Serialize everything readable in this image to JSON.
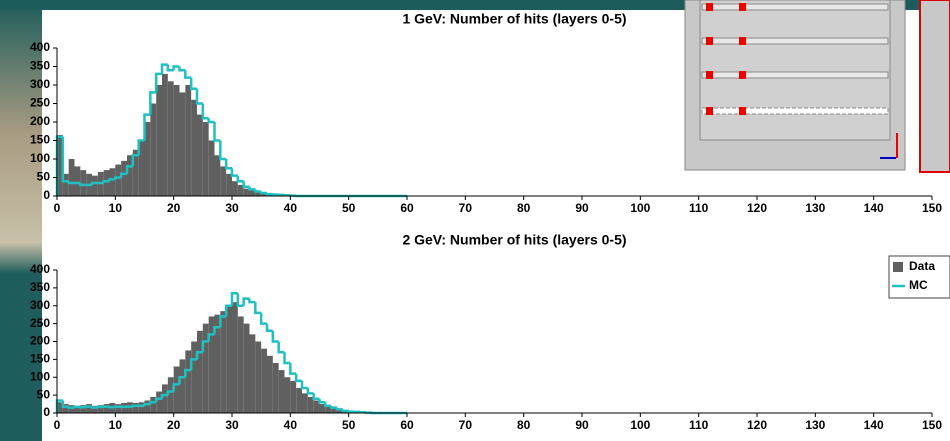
{
  "chart_data": [
    {
      "type": "histogram",
      "title": "1 GeV: Number of hits (layers 0-5)",
      "bins": [
        0,
        1,
        2,
        3,
        4,
        5,
        6,
        7,
        8,
        9,
        10,
        11,
        12,
        13,
        14,
        15,
        16,
        17,
        18,
        19,
        20,
        21,
        22,
        23,
        24,
        25,
        26,
        27,
        28,
        29,
        30,
        31,
        32,
        33,
        34,
        35,
        36,
        37,
        38,
        39,
        40,
        41,
        42,
        43,
        44,
        45,
        46,
        47,
        48,
        49,
        50,
        51,
        52,
        53,
        54,
        55,
        56,
        57,
        58,
        59,
        60
      ],
      "series": [
        {
          "color": "#606060",
          "values": [
            165,
            60,
            100,
            80,
            70,
            60,
            55,
            65,
            70,
            75,
            85,
            95,
            110,
            125,
            150,
            200,
            250,
            300,
            330,
            310,
            300,
            280,
            300,
            260,
            220,
            200,
            150,
            110,
            80,
            60,
            40,
            30,
            20,
            15,
            10,
            8,
            5,
            4,
            3,
            2,
            2,
            1,
            1,
            1,
            0,
            0,
            0,
            0,
            0,
            0,
            0,
            0,
            0,
            0,
            0,
            0,
            0,
            0,
            0,
            0
          ]
        },
        {
          "color": "#20c0c0",
          "values": [
            160,
            40,
            35,
            35,
            30,
            30,
            35,
            35,
            40,
            45,
            50,
            60,
            80,
            110,
            150,
            220,
            280,
            330,
            355,
            340,
            350,
            340,
            320,
            290,
            250,
            210,
            200,
            150,
            100,
            75,
            55,
            40,
            25,
            18,
            12,
            8,
            5,
            4,
            3,
            2,
            1,
            0,
            0,
            0,
            0,
            0,
            0,
            0,
            0,
            0,
            0,
            0,
            0,
            0,
            0,
            0,
            0,
            0,
            0,
            0
          ]
        }
      ],
      "xlim": [
        0,
        150
      ],
      "ylim": [
        0,
        400
      ],
      "xticks": [
        0,
        10,
        20,
        30,
        40,
        50,
        60,
        70,
        80,
        90,
        100,
        110,
        120,
        130,
        140,
        150
      ],
      "yticks": [
        0,
        50,
        100,
        150,
        200,
        250,
        300,
        350,
        400
      ]
    },
    {
      "type": "histogram",
      "title": "2 GeV: Number of hits (layers 0-5)",
      "bins": [
        0,
        1,
        2,
        3,
        4,
        5,
        6,
        7,
        8,
        9,
        10,
        11,
        12,
        13,
        14,
        15,
        16,
        17,
        18,
        19,
        20,
        21,
        22,
        23,
        24,
        25,
        26,
        27,
        28,
        29,
        30,
        31,
        32,
        33,
        34,
        35,
        36,
        37,
        38,
        39,
        40,
        41,
        42,
        43,
        44,
        45,
        46,
        47,
        48,
        49,
        50,
        51,
        52,
        53,
        54,
        55,
        56,
        57,
        58,
        59,
        60
      ],
      "series": [
        {
          "name": "Data",
          "color": "#606060",
          "values": [
            30,
            25,
            22,
            20,
            22,
            25,
            20,
            22,
            25,
            28,
            25,
            28,
            30,
            28,
            30,
            35,
            45,
            60,
            80,
            100,
            130,
            150,
            175,
            200,
            230,
            250,
            270,
            275,
            285,
            300,
            310,
            270,
            250,
            220,
            200,
            180,
            160,
            140,
            120,
            100,
            90,
            70,
            55,
            45,
            35,
            25,
            20,
            15,
            10,
            8,
            5,
            4,
            3,
            2,
            2,
            1,
            0,
            0,
            0,
            0
          ]
        },
        {
          "name": "MC",
          "color": "#20c0c0",
          "values": [
            35,
            18,
            15,
            17,
            16,
            18,
            15,
            17,
            18,
            16,
            18,
            17,
            18,
            20,
            20,
            25,
            30,
            40,
            50,
            60,
            80,
            100,
            120,
            150,
            170,
            200,
            220,
            240,
            270,
            300,
            335,
            300,
            320,
            310,
            280,
            250,
            230,
            200,
            170,
            140,
            110,
            90,
            70,
            55,
            40,
            30,
            20,
            15,
            10,
            6,
            4,
            3,
            2,
            1,
            0,
            0,
            0,
            0,
            0,
            0
          ]
        }
      ],
      "xlim": [
        0,
        150
      ],
      "ylim": [
        0,
        400
      ],
      "xticks": [
        0,
        10,
        20,
        30,
        40,
        50,
        60,
        70,
        80,
        90,
        100,
        110,
        120,
        130,
        140,
        150
      ],
      "yticks": [
        0,
        50,
        100,
        150,
        200,
        250,
        300,
        350,
        400
      ]
    }
  ]
}
